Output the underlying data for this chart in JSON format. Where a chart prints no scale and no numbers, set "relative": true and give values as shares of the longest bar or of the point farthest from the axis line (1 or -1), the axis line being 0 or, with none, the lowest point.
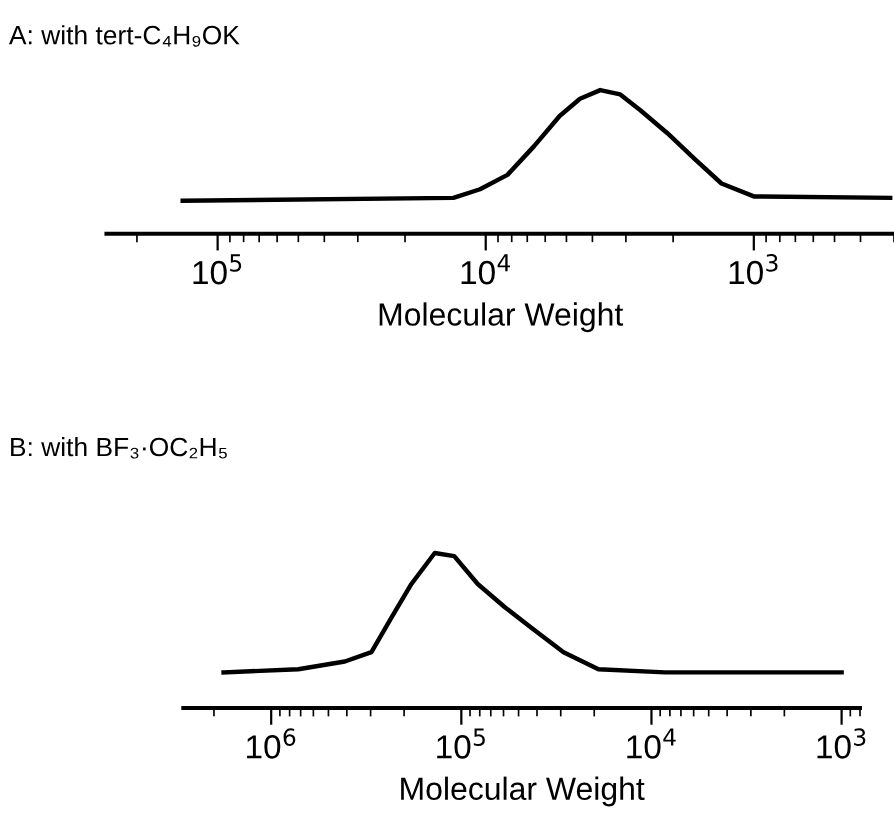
{
  "chart_data": [
    {
      "type": "line",
      "title": "A: with tert-C₄H₉OK",
      "xlabel": "Molecular Weight",
      "relative": true,
      "log": "x",
      "marker": "none",
      "line_style": "solid",
      "grid": false,
      "legend": false,
      "tick_labels": "x",
      "xlim": [
        260000,
        300
      ],
      "xticks": [
        {
          "value": 100000,
          "label": "10$^{5}$"
        },
        {
          "value": 10000,
          "label": "10$^{4}$"
        },
        {
          "value": 1000,
          "label": "10$^{3}$"
        }
      ],
      "series": [
        {
          "color": "#000000",
          "x": [
            135000,
            13200,
            10500,
            8300,
            6600,
            5300,
            4450,
            3740,
            3150,
            2650,
            2100,
            1660,
            1320,
            1000,
            310
          ],
          "values": [
            0.23,
            0.25,
            0.31,
            0.41,
            0.61,
            0.82,
            0.94,
            1,
            0.97,
            0.86,
            0.7,
            0.52,
            0.35,
            0.26,
            0.25
          ]
        }
      ]
    },
    {
      "type": "line",
      "title": "B: with BF₃·OC₂H₅",
      "xlabel": "Molecular Weight",
      "relative": true,
      "log": "x",
      "marker": "none",
      "line_style": "solid",
      "grid": false,
      "legend": false,
      "tick_labels": "x",
      "xlim": [
        2900000,
        800
      ],
      "xticks": [
        {
          "value": 1000000,
          "label": "10$^{6}$"
        },
        {
          "value": 100000,
          "label": "10$^{5}$"
        },
        {
          "value": 10000,
          "label": "10$^{4}$"
        },
        {
          "value": 1000,
          "label": "10$^{3}$"
        }
      ],
      "series": [
        {
          "color": "#000000",
          "x": [
            1780000,
            720000,
            410000,
            297000,
            234000,
            183000,
            138000,
            109000,
            82000,
            59000,
            43000,
            29000,
            19000,
            8500,
            1000
          ],
          "values": [
            0.23,
            0.25,
            0.3,
            0.36,
            0.58,
            0.8,
            1,
            0.98,
            0.8,
            0.65,
            0.52,
            0.36,
            0.25,
            0.23,
            0.23
          ]
        }
      ]
    }
  ]
}
